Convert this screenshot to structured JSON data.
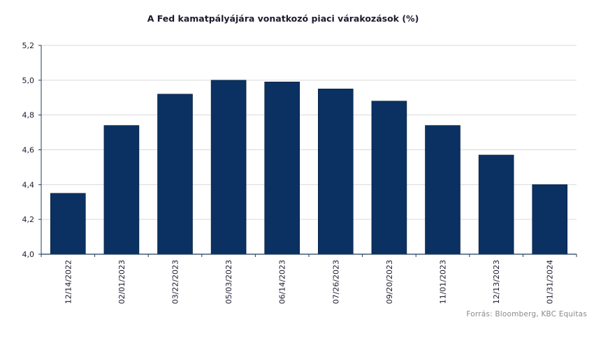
{
  "chart_data": {
    "type": "bar",
    "title": "A Fed kamatpályájára vonatkozó piaci várakozások (%)",
    "categories": [
      "12/14/2022",
      "02/01/2023",
      "03/22/2023",
      "05/03/2023",
      "06/14/2023",
      "07/26/2023",
      "09/20/2023",
      "11/01/2023",
      "12/13/2023",
      "01/31/2024"
    ],
    "values": [
      4.35,
      4.74,
      4.92,
      5.0,
      4.99,
      4.95,
      4.88,
      4.74,
      4.57,
      4.4
    ],
    "ylim": [
      4.0,
      5.2
    ],
    "yticks": [
      "4,0",
      "4,2",
      "4,4",
      "4,6",
      "4,8",
      "5,0",
      "5,2"
    ],
    "ytick_values": [
      4.0,
      4.2,
      4.4,
      4.6,
      4.8,
      5.0,
      5.2
    ],
    "grid": true,
    "bar_color": "#0a3161",
    "grid_color": "#d9d9d9",
    "axis_color": "#1f3b5c"
  },
  "source_note": "Forrás: Bloomberg,  KBC Equitas"
}
